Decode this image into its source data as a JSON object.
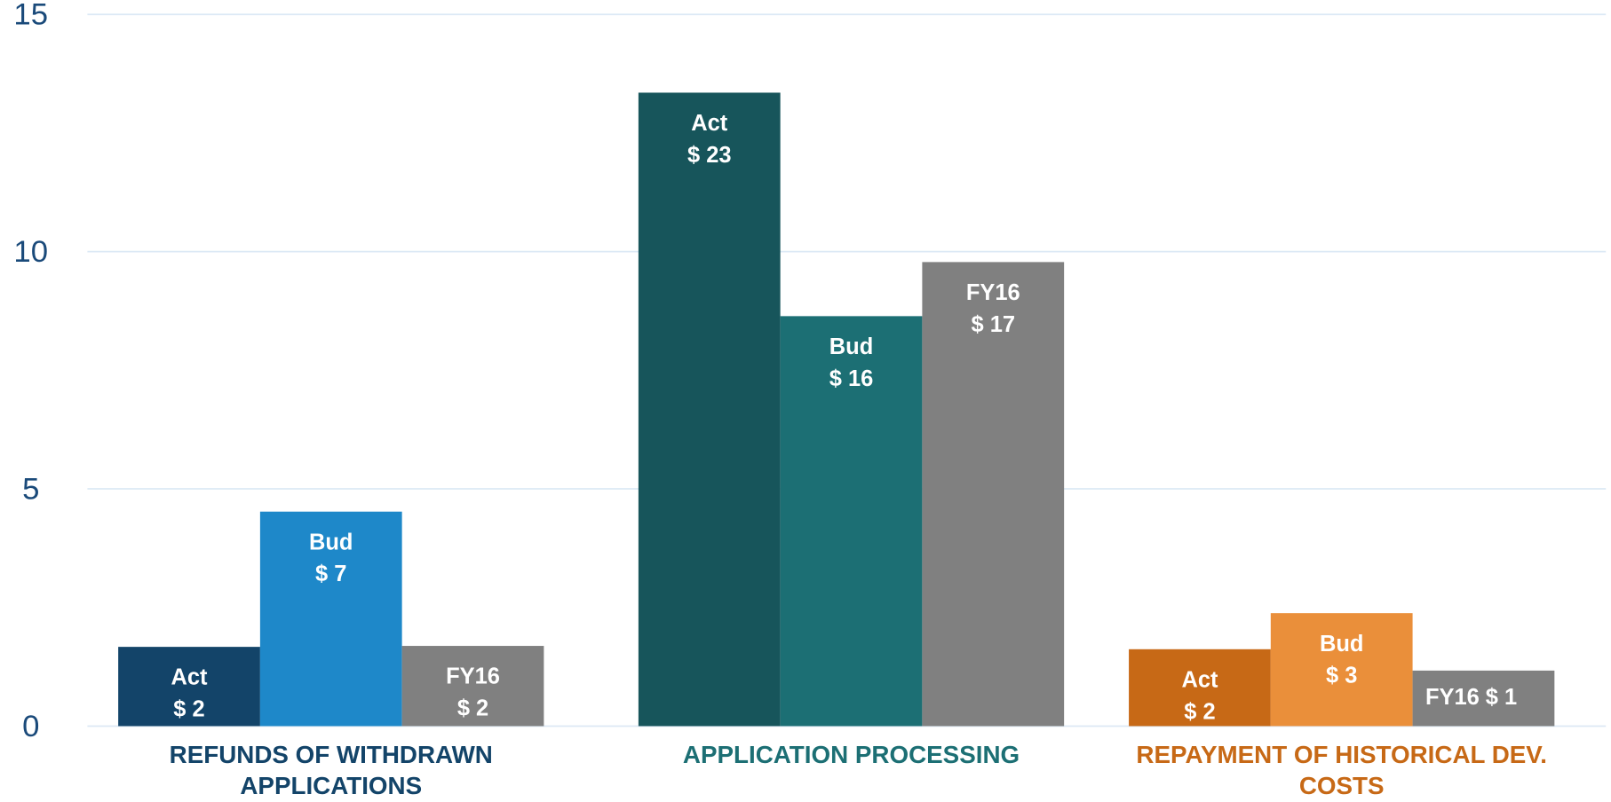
{
  "chart_data": {
    "type": "bar",
    "categories": [
      "REFUNDS OF WITHDRAWN APPLICATIONS",
      "APPLICATION PROCESSING",
      "REPAYMENT OF HISTORICAL DEV. COSTS"
    ],
    "category_colors": [
      "#134469",
      "#1c6f74",
      "#c76916"
    ],
    "series": [
      {
        "name": "Act",
        "colors": [
          "#134469",
          "#17555b",
          "#c76916"
        ],
        "values": [
          1.67,
          13.35,
          1.62
        ],
        "amounts": [
          "$ 2",
          "$ 23",
          "$ 2"
        ]
      },
      {
        "name": "Bud",
        "colors": [
          "#1e88c9",
          "#1c6f74",
          "#ea8f3a"
        ],
        "values": [
          4.52,
          8.64,
          2.38
        ],
        "amounts": [
          "$ 7",
          "$ 16",
          "$ 3"
        ]
      },
      {
        "name": "FY16",
        "colors": [
          "#808080",
          "#808080",
          "#808080"
        ],
        "values": [
          1.69,
          9.78,
          1.17
        ],
        "amounts": [
          "$ 2",
          "$ 17",
          "$ 1"
        ]
      }
    ],
    "ylim": [
      0,
      15
    ],
    "yticks": [
      0,
      5,
      10,
      15
    ],
    "grid": true
  }
}
